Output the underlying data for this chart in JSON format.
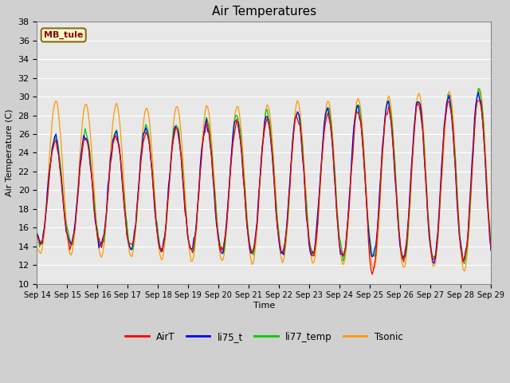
{
  "title": "Air Temperatures",
  "xlabel": "Time",
  "ylabel": "Air Temperature (C)",
  "ylim": [
    10,
    38
  ],
  "yticks": [
    10,
    12,
    14,
    16,
    18,
    20,
    22,
    24,
    26,
    28,
    30,
    32,
    34,
    36,
    38
  ],
  "station_label": "MB_tule",
  "legend_entries": [
    "AirT",
    "li75_t",
    "li77_temp",
    "Tsonic"
  ],
  "line_colors": [
    "#ff0000",
    "#0000ff",
    "#00cc00",
    "#ff9900"
  ],
  "fig_bg_color": "#d0d0d0",
  "plot_bg_color": "#e8e8e8",
  "grid_color": "#ffffff",
  "n_days": 15,
  "start_day": 14,
  "hours_per_day": 24
}
